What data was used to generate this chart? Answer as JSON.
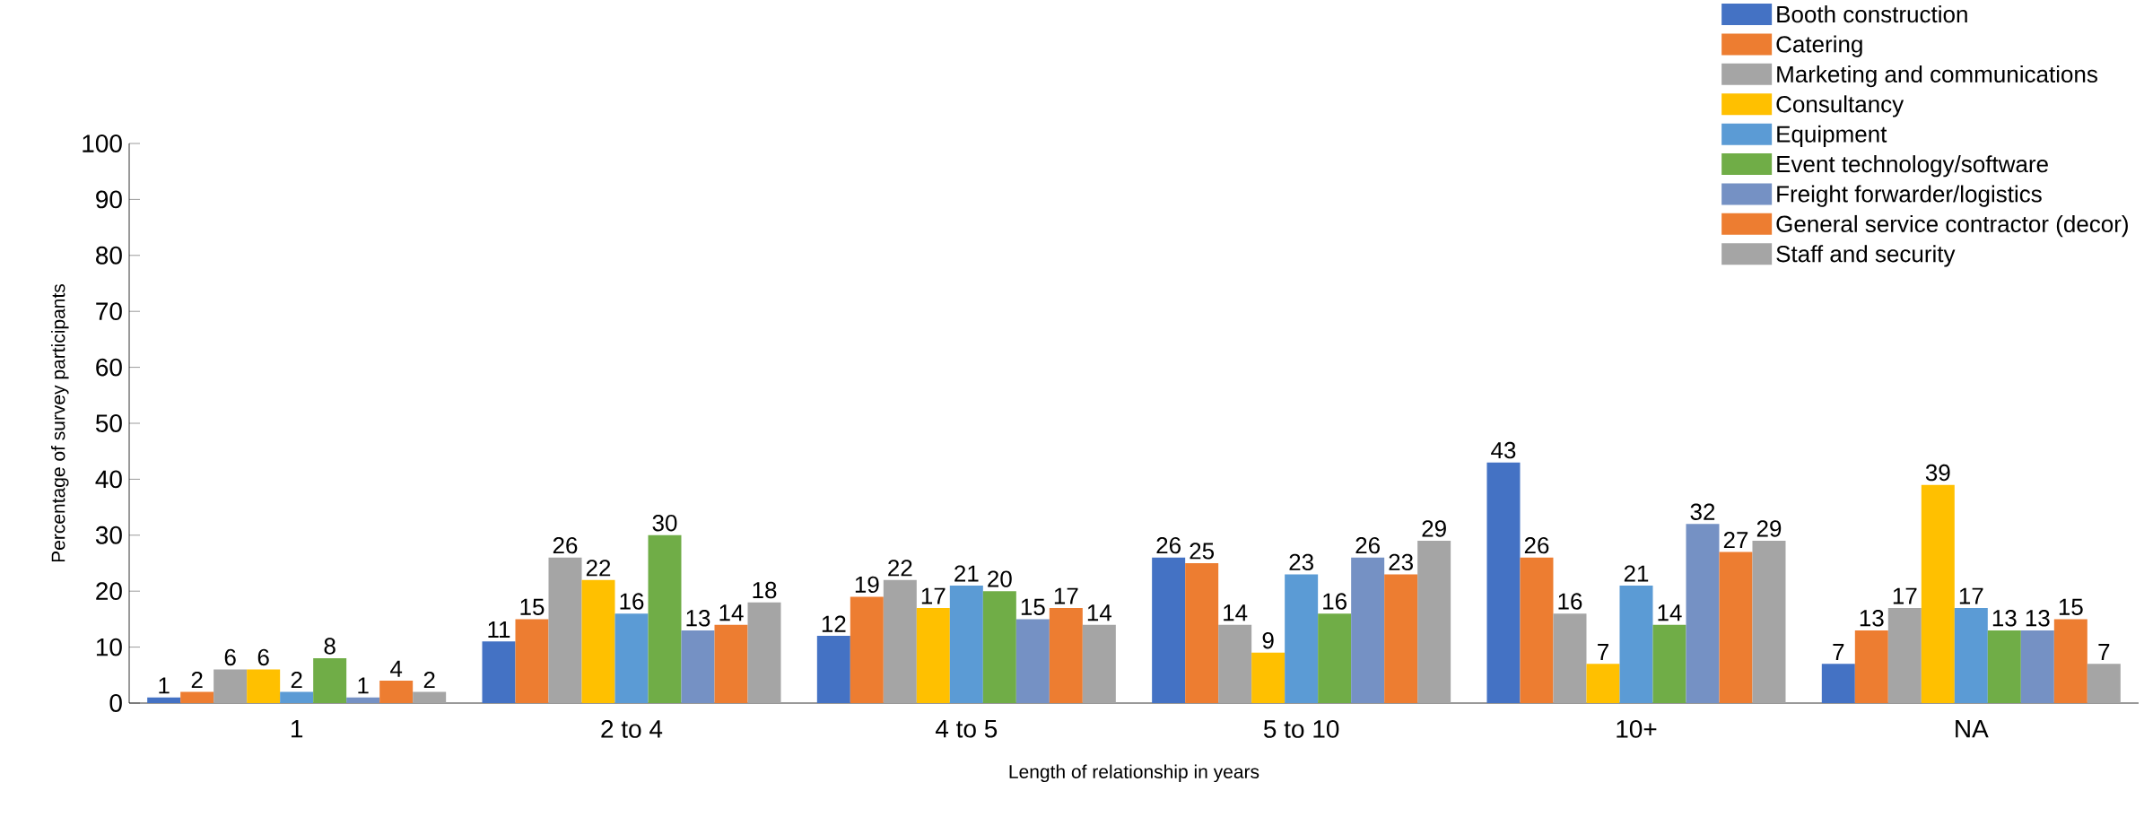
{
  "chart_data": {
    "type": "bar",
    "xlabel": "Length of relationship in years",
    "ylabel": "Percentage of  survey participants",
    "categories": [
      "1",
      "2 to 4",
      "4 to 5",
      "5 to 10",
      "10+",
      "NA"
    ],
    "series": [
      {
        "name": "Booth construction",
        "color": "#4472c4",
        "values": [
          1,
          11,
          12,
          26,
          43,
          7
        ]
      },
      {
        "name": "Catering",
        "color": "#ed7d31",
        "values": [
          2,
          15,
          19,
          25,
          26,
          13
        ]
      },
      {
        "name": "Marketing and communications",
        "color": "#a5a5a5",
        "values": [
          6,
          26,
          22,
          14,
          16,
          17
        ]
      },
      {
        "name": "Consultancy",
        "color": "#ffc000",
        "values": [
          6,
          22,
          17,
          9,
          7,
          39
        ]
      },
      {
        "name": "Equipment",
        "color": "#5b9bd5",
        "values": [
          2,
          16,
          21,
          23,
          21,
          17
        ]
      },
      {
        "name": "Event technology/software",
        "color": "#70ad47",
        "values": [
          8,
          30,
          20,
          16,
          14,
          13
        ]
      },
      {
        "name": "Freight forwarder/logistics",
        "color": "#7591c4",
        "values": [
          1,
          13,
          15,
          26,
          32,
          13
        ]
      },
      {
        "name": "General service contractor (decor)",
        "color": "#ed7d31",
        "values": [
          4,
          14,
          17,
          23,
          27,
          15
        ]
      },
      {
        "name": "Staff and security",
        "color": "#a5a5a5",
        "values": [
          2,
          18,
          14,
          29,
          29,
          7
        ]
      }
    ],
    "ylim": [
      0,
      100
    ],
    "yticks": [
      0,
      10,
      20,
      30,
      40,
      50,
      60,
      70,
      80,
      90,
      100
    ],
    "data_labels": true,
    "legend": "top right",
    "grid": false
  }
}
